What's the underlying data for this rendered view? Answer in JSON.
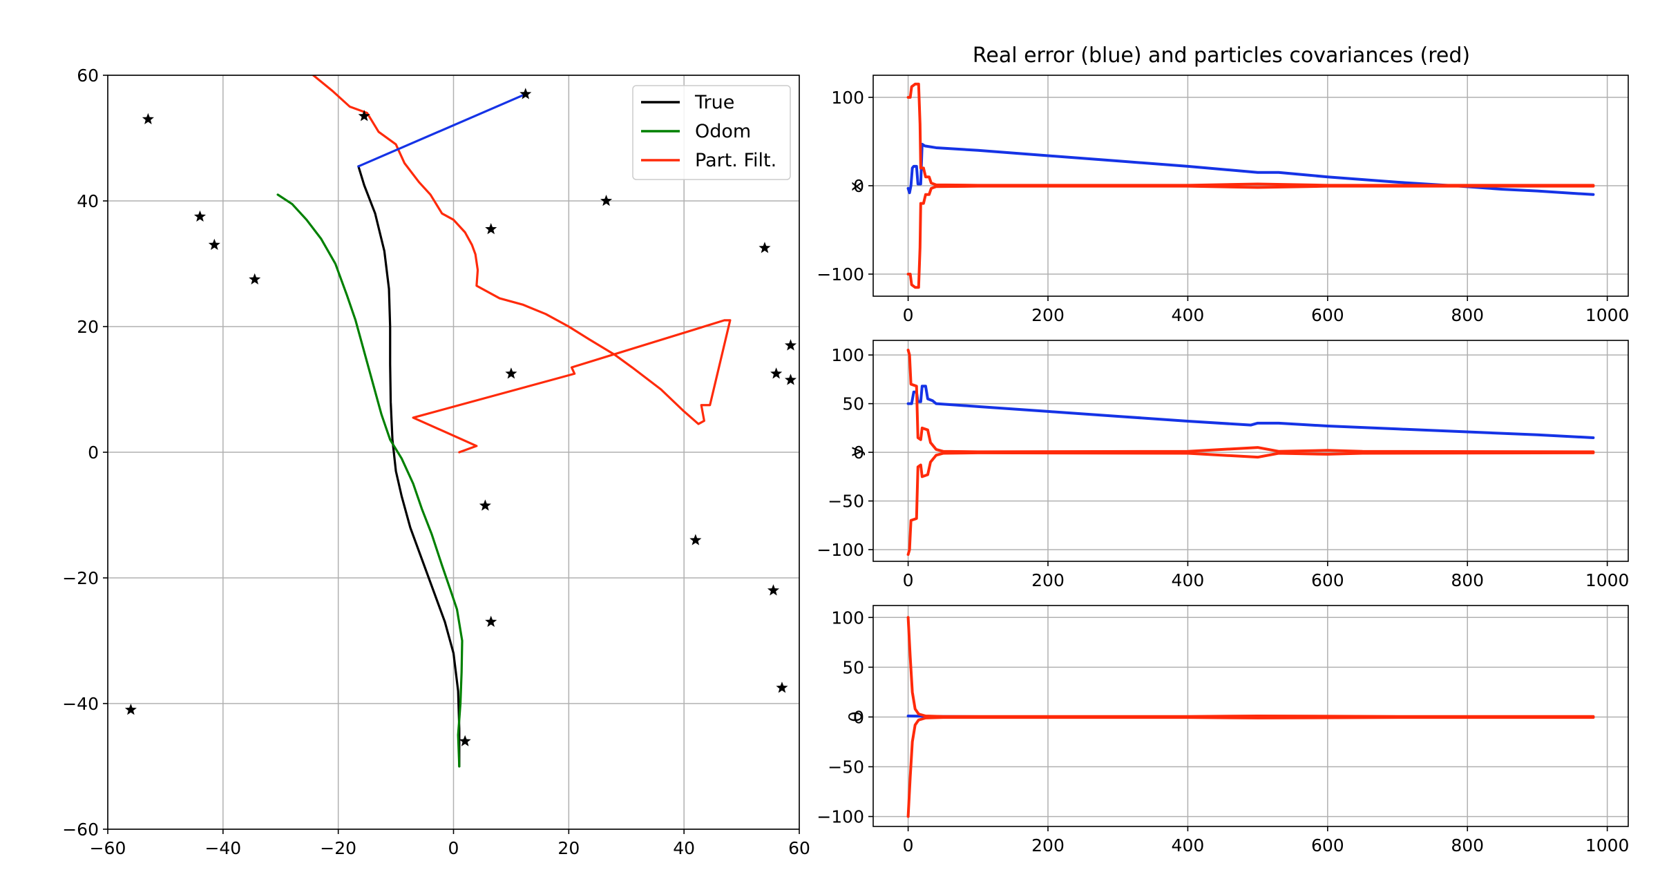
{
  "colors": {
    "true": "#000000",
    "odom": "#008000",
    "pf": "#ff2a0a",
    "error": "#1533e6",
    "grid": "#b0b0b0"
  },
  "chart_data": [
    {
      "type": "line",
      "xlim": [
        -60,
        60
      ],
      "ylim": [
        -60,
        60
      ],
      "xticks": [
        -60,
        -40,
        -20,
        0,
        20,
        40,
        60
      ],
      "yticks": [
        -60,
        -40,
        -20,
        0,
        20,
        40,
        60
      ],
      "xtick_labels": [
        "−60",
        "−40",
        "−20",
        "0",
        "20",
        "40",
        "60"
      ],
      "ytick_labels": [
        "−60",
        "−40",
        "−20",
        "0",
        "20",
        "40",
        "60"
      ],
      "grid": true,
      "legend_position": "top-right",
      "series": [
        {
          "name": "True",
          "color": "#000000",
          "points": [
            [
              1,
              -50
            ],
            [
              1,
              -44
            ],
            [
              0.8,
              -38
            ],
            [
              0,
              -32
            ],
            [
              -1.5,
              -27
            ],
            [
              -3.5,
              -22
            ],
            [
              -5.5,
              -17
            ],
            [
              -7.5,
              -12
            ],
            [
              -9,
              -7
            ],
            [
              -10,
              -3
            ],
            [
              -10.6,
              2
            ],
            [
              -10.9,
              8
            ],
            [
              -11,
              14
            ],
            [
              -11,
              20
            ],
            [
              -11.2,
              26
            ],
            [
              -12,
              32
            ],
            [
              -13.6,
              38
            ],
            [
              -15.5,
              42.5
            ],
            [
              -16.5,
              45.5
            ]
          ]
        },
        {
          "name": "Odom",
          "color": "#008000",
          "points": [
            [
              1,
              -50
            ],
            [
              0.8,
              -45
            ],
            [
              1.2,
              -40
            ],
            [
              1.4,
              -35
            ],
            [
              1.5,
              -30
            ],
            [
              0.6,
              -25
            ],
            [
              -0.5,
              -22
            ],
            [
              -2,
              -18
            ],
            [
              -3.8,
              -13
            ],
            [
              -5.5,
              -9
            ],
            [
              -7,
              -5
            ],
            [
              -9,
              -1
            ],
            [
              -11,
              2
            ],
            [
              -12.5,
              6
            ],
            [
              -14,
              11
            ],
            [
              -15.5,
              16
            ],
            [
              -17,
              21
            ],
            [
              -18.5,
              25
            ],
            [
              -20.5,
              30
            ],
            [
              -23,
              34
            ],
            [
              -25.5,
              37
            ],
            [
              -28,
              39.5
            ],
            [
              -30.5,
              41
            ]
          ]
        },
        {
          "name": "Part. Filt.",
          "color": "#ff2a0a",
          "points": [
            [
              1,
              0
            ],
            [
              4,
              1
            ],
            [
              -7,
              5.5
            ],
            [
              21,
              12.5
            ],
            [
              20.5,
              13.5
            ],
            [
              47,
              21
            ],
            [
              48,
              21
            ],
            [
              44.5,
              7.5
            ],
            [
              43,
              7.5
            ],
            [
              43.5,
              5
            ],
            [
              42.5,
              4.5
            ],
            [
              40,
              6.5
            ],
            [
              36,
              10
            ],
            [
              31,
              13.5
            ],
            [
              28,
              15.5
            ],
            [
              23.5,
              18
            ],
            [
              20,
              20
            ],
            [
              16,
              22
            ],
            [
              12,
              23.5
            ],
            [
              8,
              24.5
            ],
            [
              4,
              26.5
            ],
            [
              4.2,
              29
            ],
            [
              3.8,
              31.5
            ],
            [
              3.2,
              33
            ],
            [
              2,
              35
            ],
            [
              0,
              37
            ],
            [
              -2,
              38
            ],
            [
              -4,
              41
            ],
            [
              -6,
              43
            ],
            [
              -8.5,
              46
            ],
            [
              -10,
              49
            ],
            [
              -13,
              51
            ],
            [
              -15,
              54
            ],
            [
              -18,
              55
            ],
            [
              -21,
              57.5
            ],
            [
              -25,
              60.5
            ]
          ]
        },
        {
          "name": "",
          "color": "#1533e6",
          "points": [
            [
              -16.5,
              45.5
            ],
            [
              12.5,
              57
            ]
          ]
        }
      ],
      "landmarks": [
        [
          -53,
          53
        ],
        [
          -15.5,
          53.5
        ],
        [
          12.5,
          57
        ],
        [
          -44,
          37.5
        ],
        [
          -41.5,
          33
        ],
        [
          -34.5,
          27.5
        ],
        [
          6.5,
          35.5
        ],
        [
          26.5,
          40
        ],
        [
          54,
          32.5
        ],
        [
          58.5,
          17
        ],
        [
          56,
          12.5
        ],
        [
          58.5,
          11.5
        ],
        [
          10,
          12.5
        ],
        [
          5.5,
          -8.5
        ],
        [
          42,
          -14
        ],
        [
          55.5,
          -22
        ],
        [
          6.5,
          -27
        ],
        [
          57,
          -37.5
        ],
        [
          -56,
          -41
        ],
        [
          2,
          -46
        ]
      ]
    },
    {
      "type": "line",
      "title": "Real error (blue) and particles covariances (red)",
      "ylabel": "x",
      "xlim": [
        -50,
        1030
      ],
      "ylim": [
        -125,
        125
      ],
      "xticks": [
        0,
        200,
        400,
        600,
        800,
        1000
      ],
      "yticks": [
        -100,
        0,
        100
      ],
      "xtick_labels": [
        "0",
        "200",
        "400",
        "600",
        "800",
        "1000"
      ],
      "ytick_labels": [
        "−100",
        "0",
        "100"
      ],
      "grid": true,
      "series": [
        {
          "color": "#1533e6",
          "points": [
            [
              0,
              -3
            ],
            [
              2,
              -8
            ],
            [
              4,
              0
            ],
            [
              6,
              20
            ],
            [
              8,
              22
            ],
            [
              12,
              22
            ],
            [
              14,
              2
            ],
            [
              18,
              2
            ],
            [
              20,
              47
            ],
            [
              24,
              45
            ],
            [
              40,
              43
            ],
            [
              100,
              40
            ],
            [
              200,
              34
            ],
            [
              300,
              28
            ],
            [
              400,
              22
            ],
            [
              500,
              15
            ],
            [
              530,
              15
            ],
            [
              600,
              10
            ],
            [
              700,
              4
            ],
            [
              780,
              0
            ],
            [
              850,
              -4
            ],
            [
              900,
              -6
            ],
            [
              980,
              -10
            ]
          ]
        },
        {
          "color": "#ff2a0a",
          "points": [
            [
              0,
              100
            ],
            [
              3,
              100
            ],
            [
              5,
              112
            ],
            [
              10,
              115
            ],
            [
              15,
              115
            ],
            [
              17,
              70
            ],
            [
              18,
              20
            ],
            [
              22,
              20
            ],
            [
              25,
              10
            ],
            [
              30,
              10
            ],
            [
              33,
              3
            ],
            [
              40,
              1
            ],
            [
              100,
              0.5
            ],
            [
              400,
              0.5
            ],
            [
              500,
              2
            ],
            [
              600,
              0.5
            ],
            [
              980,
              0.5
            ]
          ]
        },
        {
          "color": "#ff2a0a",
          "points": [
            [
              0,
              -100
            ],
            [
              3,
              -100
            ],
            [
              5,
              -112
            ],
            [
              10,
              -115
            ],
            [
              15,
              -115
            ],
            [
              17,
              -70
            ],
            [
              18,
              -20
            ],
            [
              22,
              -20
            ],
            [
              25,
              -10
            ],
            [
              30,
              -10
            ],
            [
              33,
              -3
            ],
            [
              40,
              -1
            ],
            [
              100,
              -0.5
            ],
            [
              400,
              -0.5
            ],
            [
              500,
              -2
            ],
            [
              600,
              -0.5
            ],
            [
              980,
              -0.5
            ]
          ]
        }
      ]
    },
    {
      "type": "line",
      "ylabel": "y",
      "xlim": [
        -50,
        1030
      ],
      "ylim": [
        -112,
        115
      ],
      "xticks": [
        0,
        200,
        400,
        600,
        800,
        1000
      ],
      "yticks": [
        -100,
        -50,
        0,
        50,
        100
      ],
      "xtick_labels": [
        "0",
        "200",
        "400",
        "600",
        "800",
        "1000"
      ],
      "ytick_labels": [
        "−100",
        "−50",
        "0",
        "50",
        "100"
      ],
      "grid": true,
      "series": [
        {
          "color": "#1533e6",
          "points": [
            [
              0,
              50
            ],
            [
              5,
              50
            ],
            [
              8,
              62
            ],
            [
              12,
              62
            ],
            [
              14,
              52
            ],
            [
              18,
              52
            ],
            [
              20,
              68
            ],
            [
              25,
              68
            ],
            [
              28,
              55
            ],
            [
              35,
              53
            ],
            [
              40,
              50
            ],
            [
              100,
              47
            ],
            [
              200,
              42
            ],
            [
              300,
              37
            ],
            [
              400,
              32
            ],
            [
              490,
              28
            ],
            [
              500,
              30
            ],
            [
              530,
              30
            ],
            [
              600,
              27
            ],
            [
              700,
              24
            ],
            [
              800,
              21
            ],
            [
              900,
              18
            ],
            [
              980,
              15
            ]
          ]
        },
        {
          "color": "#ff2a0a",
          "points": [
            [
              0,
              105
            ],
            [
              2,
              100
            ],
            [
              4,
              70
            ],
            [
              12,
              68
            ],
            [
              14,
              15
            ],
            [
              18,
              13
            ],
            [
              20,
              25
            ],
            [
              28,
              23
            ],
            [
              32,
              10
            ],
            [
              40,
              3
            ],
            [
              50,
              1
            ],
            [
              100,
              0.5
            ],
            [
              400,
              1
            ],
            [
              500,
              5
            ],
            [
              530,
              1
            ],
            [
              600,
              2
            ],
            [
              650,
              1
            ],
            [
              980,
              0.5
            ]
          ]
        },
        {
          "color": "#ff2a0a",
          "points": [
            [
              0,
              -105
            ],
            [
              2,
              -100
            ],
            [
              4,
              -70
            ],
            [
              12,
              -68
            ],
            [
              14,
              -15
            ],
            [
              18,
              -13
            ],
            [
              20,
              -25
            ],
            [
              28,
              -23
            ],
            [
              32,
              -10
            ],
            [
              40,
              -3
            ],
            [
              50,
              -1
            ],
            [
              100,
              -0.5
            ],
            [
              400,
              -1
            ],
            [
              500,
              -5
            ],
            [
              530,
              -1
            ],
            [
              600,
              -2
            ],
            [
              650,
              -1
            ],
            [
              980,
              -0.5
            ]
          ]
        }
      ]
    },
    {
      "type": "line",
      "ylabel": "θ",
      "xlim": [
        -50,
        1030
      ],
      "ylim": [
        -110,
        112
      ],
      "xticks": [
        0,
        200,
        400,
        600,
        800,
        1000
      ],
      "yticks": [
        -100,
        -50,
        0,
        50,
        100
      ],
      "xtick_labels": [
        "0",
        "200",
        "400",
        "600",
        "800",
        "1000"
      ],
      "ytick_labels": [
        "−100",
        "−50",
        "0",
        "50",
        "100"
      ],
      "grid": true,
      "series": [
        {
          "color": "#1533e6",
          "points": [
            [
              0,
              1
            ],
            [
              50,
              0.5
            ],
            [
              200,
              0
            ],
            [
              500,
              0.5
            ],
            [
              980,
              0
            ]
          ]
        },
        {
          "color": "#ff2a0a",
          "points": [
            [
              0,
              100
            ],
            [
              3,
              60
            ],
            [
              6,
              25
            ],
            [
              10,
              8
            ],
            [
              15,
              3
            ],
            [
              25,
              1
            ],
            [
              50,
              0.5
            ],
            [
              400,
              0.5
            ],
            [
              500,
              1
            ],
            [
              700,
              0.5
            ],
            [
              980,
              0.5
            ]
          ]
        },
        {
          "color": "#ff2a0a",
          "points": [
            [
              0,
              -100
            ],
            [
              3,
              -60
            ],
            [
              6,
              -25
            ],
            [
              10,
              -8
            ],
            [
              15,
              -3
            ],
            [
              25,
              -1
            ],
            [
              50,
              -0.5
            ],
            [
              400,
              -0.5
            ],
            [
              500,
              -1
            ],
            [
              700,
              -0.5
            ],
            [
              980,
              -0.5
            ]
          ]
        }
      ]
    }
  ]
}
